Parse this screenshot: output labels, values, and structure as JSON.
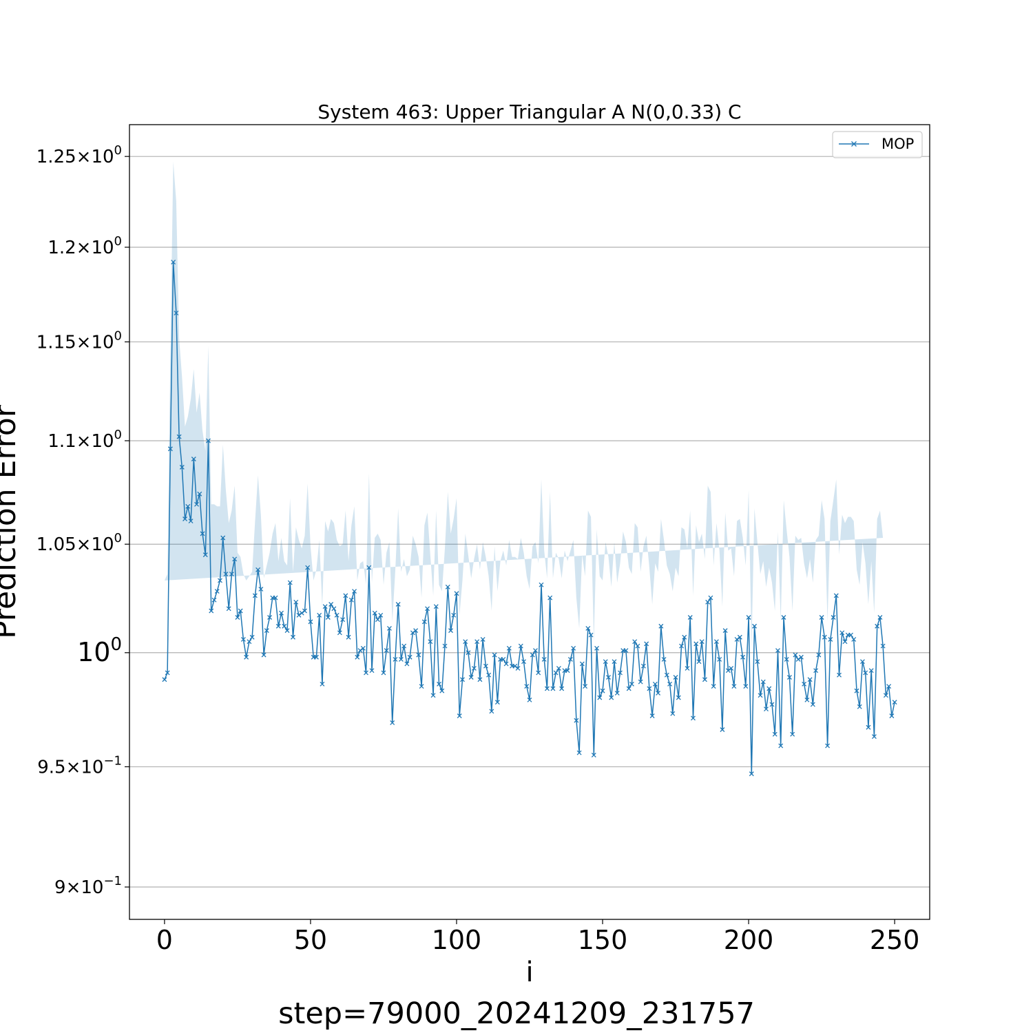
{
  "chart_data": {
    "type": "line",
    "title": "System 463: Upper Triangular A N(0,0.33) C",
    "xlabel": "i",
    "ylabel": "Prediction Error",
    "footer": "step=79000_20241209_231757",
    "yscale": "log",
    "xlim": [
      -12,
      262
    ],
    "ylim": [
      0.887,
      1.268
    ],
    "grid": "y-major",
    "legend": {
      "position": "top-right",
      "entries": [
        "MOP"
      ]
    },
    "x_ticks": [
      0,
      50,
      100,
      150,
      200,
      250
    ],
    "y_ticks": [
      {
        "value": 0.9,
        "mant": "9",
        "cross": "×",
        "base": "10",
        "exp": "−1"
      },
      {
        "value": 0.95,
        "mant": "9.5",
        "cross": "×",
        "base": "10",
        "exp": "−1"
      },
      {
        "value": 1.0,
        "mant": "",
        "cross": "",
        "base": "10",
        "exp": "0"
      },
      {
        "value": 1.05,
        "mant": "1.05",
        "cross": "×",
        "base": "10",
        "exp": "0"
      },
      {
        "value": 1.1,
        "mant": "1.1",
        "cross": "×",
        "base": "10",
        "exp": "0"
      },
      {
        "value": 1.15,
        "mant": "1.15",
        "cross": "×",
        "base": "10",
        "exp": "0"
      },
      {
        "value": 1.2,
        "mant": "1.2",
        "cross": "×",
        "base": "10",
        "exp": "0"
      },
      {
        "value": 1.25,
        "mant": "1.25",
        "cross": "×",
        "base": "10",
        "exp": "0"
      }
    ],
    "colors": {
      "line": "#1f77b4",
      "band": "#1f77b4",
      "grid": "#b0b0b0"
    },
    "series": [
      {
        "name": "MOP",
        "x_start": 0,
        "x_step": 1,
        "y": [
          0.988,
          0.991,
          1.096,
          1.192,
          1.165,
          1.102,
          1.087,
          1.062,
          1.068,
          1.061,
          1.091,
          1.069,
          1.074,
          1.055,
          1.045,
          1.1,
          1.019,
          1.024,
          1.028,
          1.033,
          1.053,
          1.036,
          1.02,
          1.036,
          1.043,
          1.016,
          1.019,
          1.006,
          0.998,
          1.005,
          1.007,
          1.026,
          1.038,
          1.029,
          0.999,
          1.01,
          1.016,
          1.025,
          1.025,
          1.012,
          1.018,
          1.012,
          1.01,
          1.032,
          1.007,
          1.023,
          1.017,
          1.018,
          1.019,
          1.039,
          1.014,
          0.998,
          0.998,
          1.017,
          0.986,
          1.021,
          1.016,
          1.022,
          1.02,
          1.017,
          1.009,
          1.015,
          1.026,
          1.007,
          1.024,
          1.028,
          0.998,
          1.001,
          1.002,
          0.991,
          1.039,
          0.992,
          1.018,
          1.015,
          1.017,
          0.991,
          1.001,
          1.011,
          0.969,
          0.997,
          1.022,
          0.997,
          1.003,
          0.995,
          0.998,
          1.009,
          1.01,
          0.999,
          0.985,
          1.014,
          1.02,
          1.005,
          0.981,
          1.021,
          0.986,
          0.983,
          1.003,
          1.03,
          1.01,
          1.017,
          1.027,
          0.972,
          0.988,
          1.005,
          1.0,
          0.989,
          0.993,
          1.005,
          0.988,
          1.006,
          0.994,
          0.99,
          0.974,
          0.999,
          0.978,
          0.997,
          0.997,
          0.995,
          1.002,
          0.994,
          0.994,
          0.993,
          1.003,
          0.996,
          0.985,
          0.979,
          0.999,
          1.001,
          0.991,
          1.031,
          0.997,
          0.984,
          1.025,
          0.984,
          0.991,
          0.993,
          0.984,
          0.992,
          0.992,
          0.997,
          1.002,
          0.97,
          0.956,
          0.995,
          0.985,
          1.011,
          1.008,
          0.955,
          1.002,
          0.98,
          0.983,
          0.996,
          0.989,
          0.98,
          0.996,
          0.982,
          0.991,
          1.001,
          1.001,
          0.984,
          0.986,
          1.005,
          1.003,
          0.987,
          0.994,
          1.004,
          0.984,
          0.972,
          0.986,
          0.982,
          1.012,
          0.997,
          0.99,
          0.986,
          0.973,
          0.989,
          0.98,
          1.003,
          1.007,
          0.993,
          1.016,
          0.971,
          1.004,
          0.996,
          1.005,
          0.988,
          1.023,
          1.025,
          0.985,
          1.005,
          0.997,
          0.966,
          1.01,
          0.992,
          0.993,
          0.985,
          1.006,
          1.007,
          0.998,
          0.985,
          1.016,
          0.947,
          1.012,
          0.996,
          0.981,
          0.987,
          0.975,
          0.984,
          0.977,
          0.964,
          1.001,
          0.959,
          1.016,
          0.997,
          0.989,
          0.964,
          0.999,
          0.997,
          0.998,
          0.986,
          0.979,
          0.988,
          0.977,
          0.992,
          0.999,
          1.016,
          1.007,
          0.959,
          1.006,
          1.016,
          1.026,
          0.99,
          1.009,
          1.005,
          1.008,
          1.008,
          1.006,
          0.983,
          0.976,
          0.996,
          0.991,
          0.967,
          0.992,
          0.963,
          1.012,
          1.016,
          1.003,
          0.981,
          0.985,
          0.972,
          0.978
        ],
        "band_half_width": [
          0.045,
          0.045,
          0.05,
          0.055,
          0.06,
          0.05,
          0.045,
          0.045,
          0.044,
          0.06,
          0.045,
          0.045,
          0.05,
          0.05,
          0.05,
          0.048,
          0.05,
          0.045,
          0.04,
          0.035,
          0.045,
          0.04,
          0.04,
          0.03,
          0.035,
          0.03,
          0.025,
          0.03,
          0.035,
          0.03,
          0.03,
          0.035,
          0.045,
          0.035,
          0.035,
          0.03,
          0.03,
          0.03,
          0.035,
          0.03,
          0.035,
          0.03,
          0.03,
          0.04,
          0.03,
          0.035,
          0.035,
          0.03,
          0.035,
          0.04,
          0.035,
          0.035,
          0.04,
          0.035,
          0.035,
          0.04,
          0.04,
          0.04,
          0.04,
          0.035,
          0.04,
          0.035,
          0.04,
          0.035,
          0.035,
          0.04,
          0.035,
          0.04,
          0.04,
          0.04,
          0.045,
          0.04,
          0.035,
          0.04,
          0.035,
          0.04,
          0.045,
          0.04,
          0.045,
          0.04,
          0.045,
          0.04,
          0.04,
          0.04,
          0.04,
          0.045,
          0.04,
          0.045,
          0.04,
          0.045,
          0.045,
          0.04,
          0.045,
          0.045,
          0.045,
          0.045,
          0.045,
          0.045,
          0.045,
          0.045,
          0.045,
          0.045,
          0.045,
          0.05,
          0.045,
          0.045,
          0.05,
          0.045,
          0.05,
          0.045,
          0.05,
          0.045,
          0.045,
          0.05,
          0.05,
          0.045,
          0.05,
          0.045,
          0.05,
          0.05,
          0.05,
          0.05,
          0.05,
          0.05,
          0.05,
          0.05,
          0.05,
          0.05,
          0.05,
          0.05,
          0.05,
          0.05,
          0.05,
          0.05,
          0.055,
          0.05,
          0.05,
          0.055,
          0.05,
          0.05,
          0.05,
          0.055,
          0.055,
          0.05,
          0.05,
          0.055,
          0.055,
          0.05,
          0.055,
          0.055,
          0.05,
          0.055,
          0.055,
          0.05,
          0.055,
          0.05,
          0.05,
          0.055,
          0.05,
          0.055,
          0.05,
          0.055,
          0.055,
          0.05,
          0.055,
          0.05,
          0.055,
          0.05,
          0.055,
          0.055,
          0.05,
          0.055,
          0.05,
          0.05,
          0.055,
          0.05,
          0.055,
          0.055,
          0.05,
          0.055,
          0.05,
          0.055,
          0.055,
          0.055,
          0.05,
          0.055,
          0.055,
          0.05,
          0.055,
          0.055,
          0.05,
          0.055,
          0.055,
          0.055,
          0.055,
          0.05,
          0.055,
          0.055,
          0.055,
          0.055,
          0.06,
          0.055,
          0.055,
          0.055,
          0.055,
          0.055,
          0.055,
          0.055,
          0.055,
          0.055,
          0.055,
          0.055,
          0.055,
          0.06,
          0.055,
          0.055,
          0.055,
          0.055,
          0.055,
          0.055,
          0.055,
          0.055,
          0.055,
          0.06,
          0.055,
          0.055,
          0.055,
          0.055,
          0.055,
          0.055,
          0.055,
          0.055,
          0.055,
          0.055,
          0.055,
          0.055,
          0.055,
          0.055,
          0.055,
          0.055,
          0.05,
          0.055,
          0.05,
          0.055,
          0.05,
          0.05,
          0.05
        ]
      }
    ]
  }
}
